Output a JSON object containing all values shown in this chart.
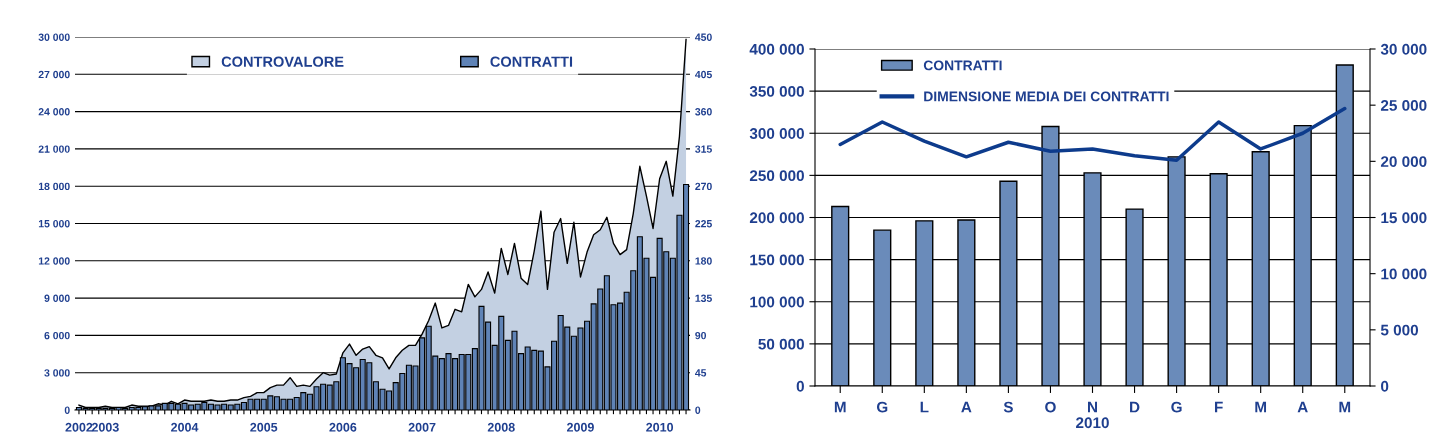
{
  "chart_data": [
    {
      "type": "bar",
      "categories": [
        "2002",
        null,
        null,
        null,
        "2003",
        null,
        null,
        null,
        null,
        null,
        null,
        null,
        null,
        null,
        null,
        null,
        "2004",
        null,
        null,
        null,
        null,
        null,
        null,
        null,
        null,
        null,
        null,
        null,
        "2005",
        null,
        null,
        null,
        null,
        null,
        null,
        null,
        null,
        null,
        null,
        null,
        "2006",
        null,
        null,
        null,
        null,
        null,
        null,
        null,
        null,
        null,
        null,
        null,
        "2007",
        null,
        null,
        null,
        null,
        null,
        null,
        null,
        null,
        null,
        null,
        null,
        "2008",
        null,
        null,
        null,
        null,
        null,
        null,
        null,
        null,
        null,
        null,
        null,
        "2009",
        null,
        null,
        null,
        null,
        null,
        null,
        null,
        null,
        null,
        null,
        null,
        "2010",
        null,
        null,
        null,
        null
      ],
      "series": [
        {
          "name": "CONTROVALORE",
          "type": "area",
          "axis": "y",
          "color": "#c3d0e2",
          "values": [
            400,
            200,
            200,
            200,
            300,
            200,
            200,
            200,
            400,
            300,
            300,
            300,
            500,
            400,
            700,
            500,
            800,
            700,
            700,
            700,
            800,
            700,
            700,
            800,
            800,
            1000,
            1100,
            1400,
            1400,
            1800,
            2000,
            2000,
            2600,
            1900,
            2000,
            1900,
            2500,
            3000,
            2800,
            2900,
            4600,
            5300,
            4400,
            4900,
            5100,
            4400,
            4200,
            3300,
            4200,
            4800,
            5200,
            5200,
            6100,
            7200,
            8600,
            6600,
            6800,
            8100,
            7900,
            10100,
            9100,
            9700,
            11100,
            9400,
            13000,
            10900,
            13400,
            10600,
            10100,
            12800,
            16000,
            9700,
            14300,
            15400,
            11800,
            15100,
            10700,
            12700,
            14100,
            14500,
            15500,
            13400,
            12500,
            12900,
            15800,
            19600,
            17200,
            14600,
            18600,
            20000,
            17200,
            22000,
            29800
          ]
        },
        {
          "name": "CONTRATTI",
          "type": "bar",
          "axis": "y2",
          "color": "#5f83b6",
          "values": [
            3,
            2,
            2,
            2,
            2,
            2,
            3,
            2,
            3,
            3,
            4,
            5,
            5,
            8,
            8,
            7,
            8,
            6,
            7,
            9,
            7,
            6,
            7,
            6,
            7,
            9,
            13,
            13,
            13,
            17,
            16,
            13,
            13,
            15,
            21,
            19,
            28,
            31,
            30,
            34,
            63,
            56,
            51,
            61,
            57,
            34,
            25,
            23,
            33,
            44,
            54,
            53,
            87,
            101,
            65,
            62,
            68,
            62,
            67,
            67,
            74,
            125,
            106,
            78,
            113,
            84,
            95,
            68,
            76,
            72,
            71,
            52,
            83,
            114,
            100,
            89,
            99,
            107,
            128,
            146,
            162,
            127,
            129,
            142,
            168,
            209,
            183,
            160,
            207,
            191,
            183,
            235,
            272
          ]
        }
      ],
      "ylim": [
        0,
        30000
      ],
      "yticks": [
        0,
        {
          "value": 3000,
          "label": "3 000"
        },
        {
          "value": 6000,
          "label": "6 000"
        },
        {
          "value": 9000,
          "label": "9 000"
        },
        {
          "value": 12000,
          "label": "12 000"
        },
        {
          "value": 15000,
          "label": "15 000"
        },
        {
          "value": 18000,
          "label": "18 000"
        },
        {
          "value": 21000,
          "label": "21 000"
        },
        {
          "value": 24000,
          "label": "24 000"
        },
        {
          "value": 27000,
          "label": "27 000"
        },
        {
          "value": 30000,
          "label": "30 000"
        }
      ],
      "y2lim": [
        0,
        450
      ],
      "y2ticks": [
        0,
        45,
        90,
        135,
        180,
        225,
        270,
        315,
        360,
        405,
        450
      ],
      "grid": "y",
      "legend": "top"
    },
    {
      "type": "bar",
      "categories": [
        "M",
        "G",
        "L",
        "A",
        "S",
        "O",
        "N",
        "D",
        "G",
        "F",
        "M",
        "A",
        "M"
      ],
      "xlabel": "2010",
      "series": [
        {
          "name": "CONTRATTI",
          "type": "bar",
          "axis": "y",
          "color": "#6a8bba",
          "values": [
            213000,
            185000,
            196000,
            197000,
            243000,
            308000,
            253000,
            210000,
            272000,
            252000,
            278000,
            309000,
            381000
          ]
        },
        {
          "name": "DIMENSIONE MEDIA DEI CONTRATTI",
          "type": "line",
          "axis": "y2",
          "color": "#0d3b8c",
          "values": [
            21500,
            23500,
            21800,
            20400,
            21700,
            20900,
            21100,
            20500,
            20100,
            23500,
            21100,
            22500,
            24700
          ]
        }
      ],
      "ylim": [
        0,
        400000
      ],
      "yticks": [
        0,
        {
          "value": 50000,
          "label": "50 000"
        },
        {
          "value": 100000,
          "label": "100 000"
        },
        {
          "value": 150000,
          "label": "150 000"
        },
        {
          "value": 200000,
          "label": "200 000"
        },
        {
          "value": 250000,
          "label": "250 000"
        },
        {
          "value": 300000,
          "label": "300 000"
        },
        {
          "value": 350000,
          "label": "350 000"
        },
        {
          "value": 400000,
          "label": "400 000"
        }
      ],
      "y2lim": [
        0,
        30000
      ],
      "y2ticks": [
        0,
        {
          "value": 5000,
          "label": "5 000"
        },
        {
          "value": 10000,
          "label": "10 000"
        },
        {
          "value": 15000,
          "label": "15 000"
        },
        {
          "value": 20000,
          "label": "20 000"
        },
        {
          "value": 25000,
          "label": "25 000"
        },
        {
          "value": 30000,
          "label": "30 000"
        }
      ],
      "grid": "y",
      "legend": "top left"
    }
  ]
}
